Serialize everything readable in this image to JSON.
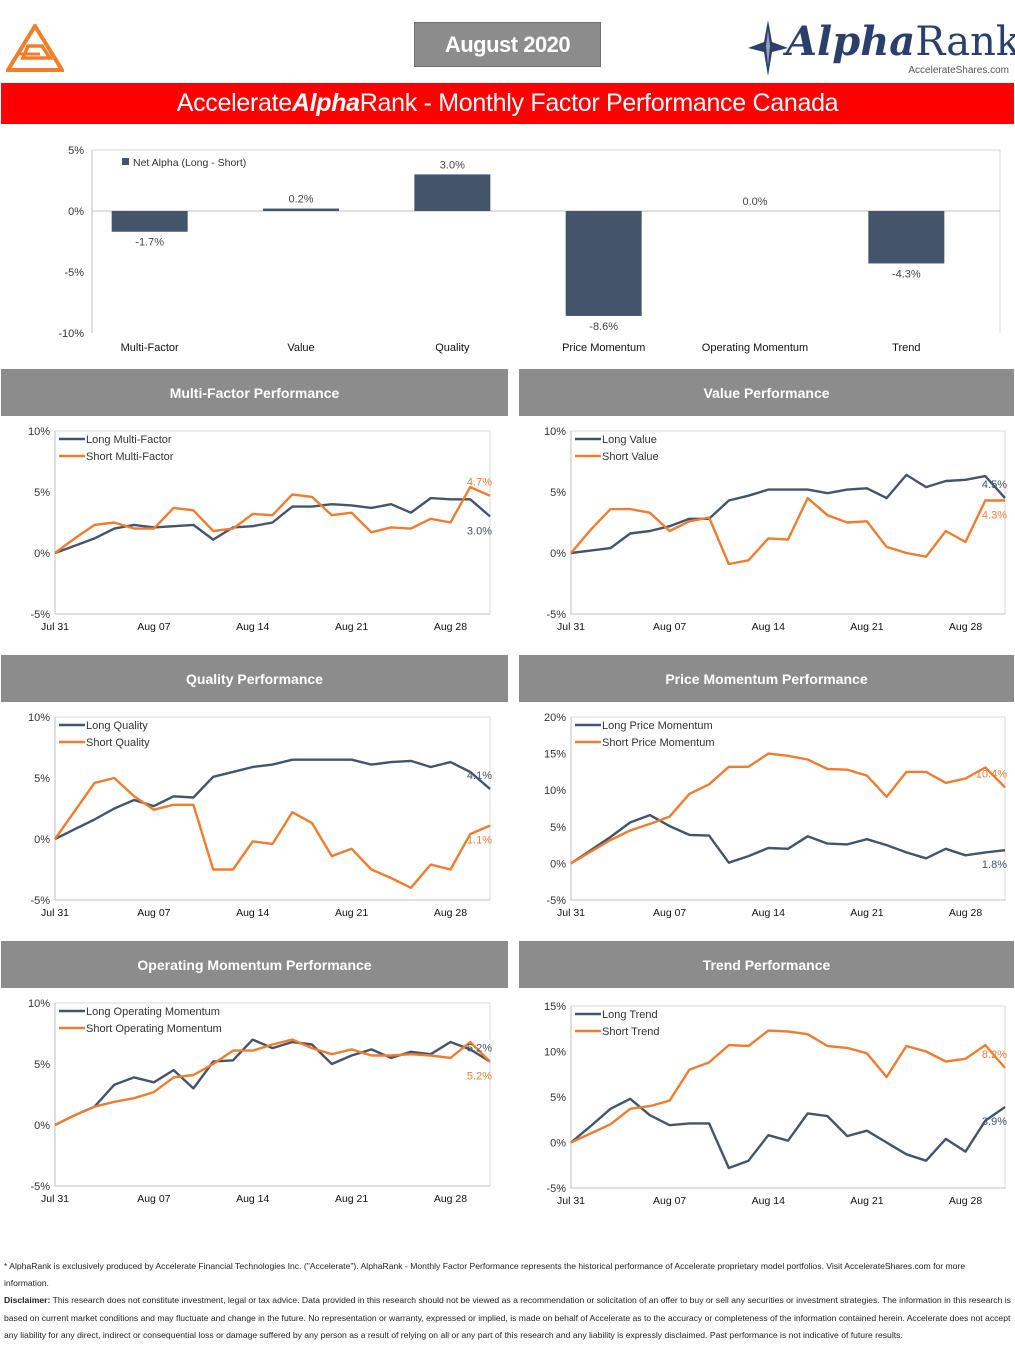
{
  "header": {
    "date_label": "August 2020",
    "brand_alpha": "Alpha",
    "brand_rank": "Rank",
    "brand_site": "AccelerateShares.com",
    "title_pre": "Accelerate ",
    "title_alpha": "Alpha",
    "title_post": " Rank - Monthly Factor Performance Canada"
  },
  "colors": {
    "brand_red": "#ff0000",
    "logo_orange": "#f07e2a",
    "navy": "#44546a",
    "orange": "#ed7d31",
    "header_gray": "#8c8c8c",
    "brand_blue": "#2a3f6b"
  },
  "icons": {
    "logo": "accelerate-logo-icon",
    "star": "compass-star-icon"
  },
  "sections": [
    "Multi-Factor Performance",
    "Value Performance",
    "Quality Performance",
    "Price Momentum Performance",
    "Operating Momentum Performance",
    "Trend Performance"
  ],
  "chart_data": [
    {
      "type": "bar",
      "legend": "Net Alpha (Long - Short)",
      "legend_position": "top-left",
      "categories": [
        "Multi-Factor",
        "Value",
        "Quality",
        "Price Momentum",
        "Operating Momentum",
        "Trend"
      ],
      "values": [
        -1.7,
        0.2,
        3.0,
        -8.6,
        0.0,
        -4.3
      ],
      "data_labels": [
        "-1.7%",
        "0.2%",
        "3.0%",
        "-8.6%",
        "0.0%",
        "-4.3%"
      ],
      "yticks": [
        "5%",
        "0%",
        "-5%",
        "-10%"
      ],
      "ylim": [
        -10,
        5
      ],
      "grid": false
    },
    {
      "type": "line",
      "x_labels": [
        "Jul 31",
        "Aug 07",
        "Aug 14",
        "Aug 21",
        "Aug 28"
      ],
      "yticks": [
        "10%",
        "5%",
        "0%",
        "-5%"
      ],
      "ylim": [
        -5,
        10
      ],
      "series": [
        {
          "name": "Long Multi-Factor",
          "end_label": "3.0%",
          "values": [
            0,
            0.6,
            1.2,
            2.0,
            2.3,
            2.1,
            2.2,
            2.3,
            1.1,
            2.1,
            2.2,
            2.5,
            3.8,
            3.8,
            4.0,
            3.9,
            3.7,
            4.0,
            3.3,
            4.5,
            4.4,
            4.4,
            3.0
          ]
        },
        {
          "name": "Short Multi-Factor",
          "end_label": "4.7%",
          "values": [
            0,
            1.2,
            2.3,
            2.5,
            2.0,
            2.0,
            3.7,
            3.5,
            1.8,
            2.0,
            3.2,
            3.1,
            4.8,
            4.6,
            3.1,
            3.3,
            1.7,
            2.1,
            2.0,
            2.8,
            2.5,
            5.4,
            4.7
          ]
        }
      ]
    },
    {
      "type": "line",
      "x_labels": [
        "Jul 31",
        "Aug 07",
        "Aug 14",
        "Aug 21",
        "Aug 28"
      ],
      "yticks": [
        "10%",
        "5%",
        "0%",
        "-5%"
      ],
      "ylim": [
        -5,
        10
      ],
      "series": [
        {
          "name": "Long Value",
          "end_label": "4.5%",
          "values": [
            0,
            0.2,
            0.4,
            1.6,
            1.8,
            2.2,
            2.8,
            2.8,
            4.3,
            4.7,
            5.2,
            5.2,
            5.2,
            4.9,
            5.2,
            5.3,
            4.5,
            6.4,
            5.4,
            5.9,
            6.0,
            6.3,
            4.5
          ]
        },
        {
          "name": "Short Value",
          "end_label": "4.3%",
          "values": [
            0,
            1.9,
            3.6,
            3.6,
            3.3,
            1.8,
            2.6,
            2.9,
            -0.9,
            -0.6,
            1.2,
            1.1,
            4.5,
            3.1,
            2.5,
            2.6,
            0.5,
            0,
            -0.3,
            1.8,
            0.9,
            4.3,
            4.3
          ]
        }
      ]
    },
    {
      "type": "line",
      "x_labels": [
        "Jul 31",
        "Aug 07",
        "Aug 14",
        "Aug 21",
        "Aug 28"
      ],
      "yticks": [
        "10%",
        "5%",
        "0%",
        "-5%"
      ],
      "ylim": [
        -5,
        10
      ],
      "series": [
        {
          "name": "Long Quality",
          "end_label": "4.1%",
          "values": [
            0,
            0.8,
            1.6,
            2.5,
            3.2,
            2.7,
            3.5,
            3.4,
            5.1,
            5.5,
            5.9,
            6.1,
            6.5,
            6.5,
            6.5,
            6.5,
            6.1,
            6.3,
            6.4,
            5.9,
            6.3,
            5.5,
            4.1
          ]
        },
        {
          "name": "Short Quality",
          "end_label": "1.1%",
          "values": [
            0,
            2.3,
            4.6,
            5.0,
            3.5,
            2.4,
            2.8,
            2.8,
            -2.5,
            -2.5,
            -0.2,
            -0.4,
            2.2,
            1.3,
            -1.4,
            -0.8,
            -2.5,
            -3.2,
            -4.0,
            -2.1,
            -2.5,
            0.4,
            1.1
          ]
        }
      ]
    },
    {
      "type": "line",
      "x_labels": [
        "Jul 31",
        "Aug 07",
        "Aug 14",
        "Aug 21",
        "Aug 28"
      ],
      "yticks": [
        "20%",
        "15%",
        "10%",
        "5%",
        "0%",
        "-5%"
      ],
      "ylim": [
        -5,
        20
      ],
      "series": [
        {
          "name": "Long Price Momentum",
          "end_label": "1.8%",
          "values": [
            0,
            1.8,
            3.6,
            5.6,
            6.6,
            5.1,
            3.9,
            3.8,
            0.1,
            1.0,
            2.1,
            2.0,
            3.7,
            2.7,
            2.6,
            3.3,
            2.5,
            1.5,
            0.7,
            2.0,
            1.1,
            1.5,
            1.8
          ]
        },
        {
          "name": "Short Price Momentum",
          "end_label": "10.4%",
          "values": [
            0,
            1.6,
            3.2,
            4.5,
            5.4,
            6.4,
            9.5,
            10.8,
            13.2,
            13.2,
            15.0,
            14.7,
            14.2,
            12.9,
            12.8,
            12.0,
            9.1,
            12.5,
            12.5,
            11.0,
            11.6,
            13.1,
            10.4
          ]
        }
      ]
    },
    {
      "type": "line",
      "x_labels": [
        "Jul 31",
        "Aug 07",
        "Aug 14",
        "Aug 21",
        "Aug 28"
      ],
      "yticks": [
        "10%",
        "5%",
        "0%",
        "-5%"
      ],
      "ylim": [
        -5,
        10
      ],
      "series": [
        {
          "name": "Long Operating Momentum",
          "end_label": "5.2%",
          "values": [
            0,
            0.8,
            1.5,
            3.3,
            3.9,
            3.5,
            4.5,
            3.0,
            5.2,
            5.3,
            7.0,
            6.3,
            6.8,
            6.6,
            5.0,
            5.7,
            6.2,
            5.5,
            6.0,
            5.8,
            6.8,
            6.2,
            5.2
          ]
        },
        {
          "name": "Short Operating Momentum",
          "end_label": "5.2%",
          "values": [
            0,
            0.8,
            1.5,
            1.9,
            2.2,
            2.7,
            3.9,
            4.1,
            5.0,
            6.1,
            6.1,
            6.6,
            7.0,
            6.3,
            5.8,
            6.2,
            5.7,
            5.7,
            5.8,
            5.7,
            5.5,
            6.8,
            5.2
          ]
        }
      ]
    },
    {
      "type": "line",
      "x_labels": [
        "Jul 31",
        "Aug 07",
        "Aug 14",
        "Aug 21",
        "Aug 28"
      ],
      "yticks": [
        "15%",
        "10%",
        "5%",
        "0%",
        "-5%"
      ],
      "ylim": [
        -5,
        15
      ],
      "series": [
        {
          "name": "Long Trend",
          "end_label": "3.9%",
          "values": [
            0,
            1.8,
            3.7,
            4.8,
            3.0,
            1.9,
            2.1,
            2.1,
            -2.8,
            -2.0,
            0.8,
            0.2,
            3.2,
            2.9,
            0.7,
            1.3,
            0.0,
            -1.3,
            -2.0,
            0.4,
            -1.0,
            2.4,
            3.9
          ]
        },
        {
          "name": "Short Trend",
          "end_label": "8.2%",
          "values": [
            0,
            1.0,
            2.0,
            3.7,
            4.0,
            4.6,
            8.0,
            8.8,
            10.7,
            10.6,
            12.3,
            12.2,
            11.9,
            10.6,
            10.4,
            9.8,
            7.2,
            10.6,
            10.0,
            8.9,
            9.2,
            10.7,
            8.2
          ]
        }
      ]
    }
  ],
  "footer": {
    "p1": "* AlphaRank is exclusively produced by Accelerate Financial Technologies Inc. (\"Accelerate\"). AlphaRank - Monthly Factor Performance represents the historical performance of Accelerate proprietary model portfolios. Visit AccelerateShares.com for more information.",
    "disclaimer_label": "Disclaimer:",
    "p2": " This research does not constitute investment, legal or tax advice. Data provided in this research should not be viewed as a recommendation or solicitation of an offer to buy or sell any securities or investment strategies. The information in this research is based on current market conditions and may fluctuate and change in the future. No representation or warranty, expressed or implied, is made on behalf of Accelerate as to the accuracy or completeness of the information contained herein. Accelerate does not accept any liability for any direct, indirect or consequential loss or damage suffered by any person as a result of relying on all or any part of this research and any liability is expressly disclaimed. Past performance is not indicative of future results."
  }
}
